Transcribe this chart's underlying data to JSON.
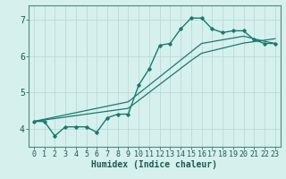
{
  "xlabel": "Humidex (Indice chaleur)",
  "bg_color": "#d6f0ee",
  "line_color": "#1a7a6e",
  "grid_color": "#b8dbd8",
  "x_data": [
    0,
    1,
    2,
    3,
    4,
    5,
    6,
    7,
    8,
    9,
    10,
    11,
    12,
    13,
    14,
    15,
    16,
    17,
    18,
    19,
    20,
    21,
    22,
    23
  ],
  "y_main": [
    4.2,
    4.2,
    3.8,
    4.05,
    4.05,
    4.05,
    3.9,
    4.3,
    4.4,
    4.4,
    5.2,
    5.65,
    6.3,
    6.35,
    6.75,
    7.05,
    7.05,
    6.75,
    6.65,
    6.7,
    6.7,
    6.45,
    6.35,
    6.35
  ],
  "y_line1": [
    4.2,
    4.24,
    4.28,
    4.32,
    4.36,
    4.4,
    4.44,
    4.48,
    4.52,
    4.56,
    4.78,
    5.0,
    5.22,
    5.44,
    5.66,
    5.88,
    6.08,
    6.15,
    6.22,
    6.29,
    6.36,
    6.4,
    6.44,
    6.48
  ],
  "y_line2": [
    4.2,
    4.26,
    4.32,
    4.38,
    4.44,
    4.5,
    4.56,
    4.62,
    4.68,
    4.74,
    4.97,
    5.2,
    5.43,
    5.66,
    5.89,
    6.12,
    6.35,
    6.4,
    6.45,
    6.5,
    6.55,
    6.48,
    6.41,
    6.35
  ],
  "ylim": [
    3.5,
    7.4
  ],
  "xlim": [
    -0.5,
    23.5
  ],
  "yticks": [
    4,
    5,
    6,
    7
  ],
  "xticks": [
    0,
    1,
    2,
    3,
    4,
    5,
    6,
    7,
    8,
    9,
    10,
    11,
    12,
    13,
    14,
    15,
    16,
    17,
    18,
    19,
    20,
    21,
    22,
    23
  ],
  "tick_fontsize": 6.0,
  "xlabel_fontsize": 7.0
}
